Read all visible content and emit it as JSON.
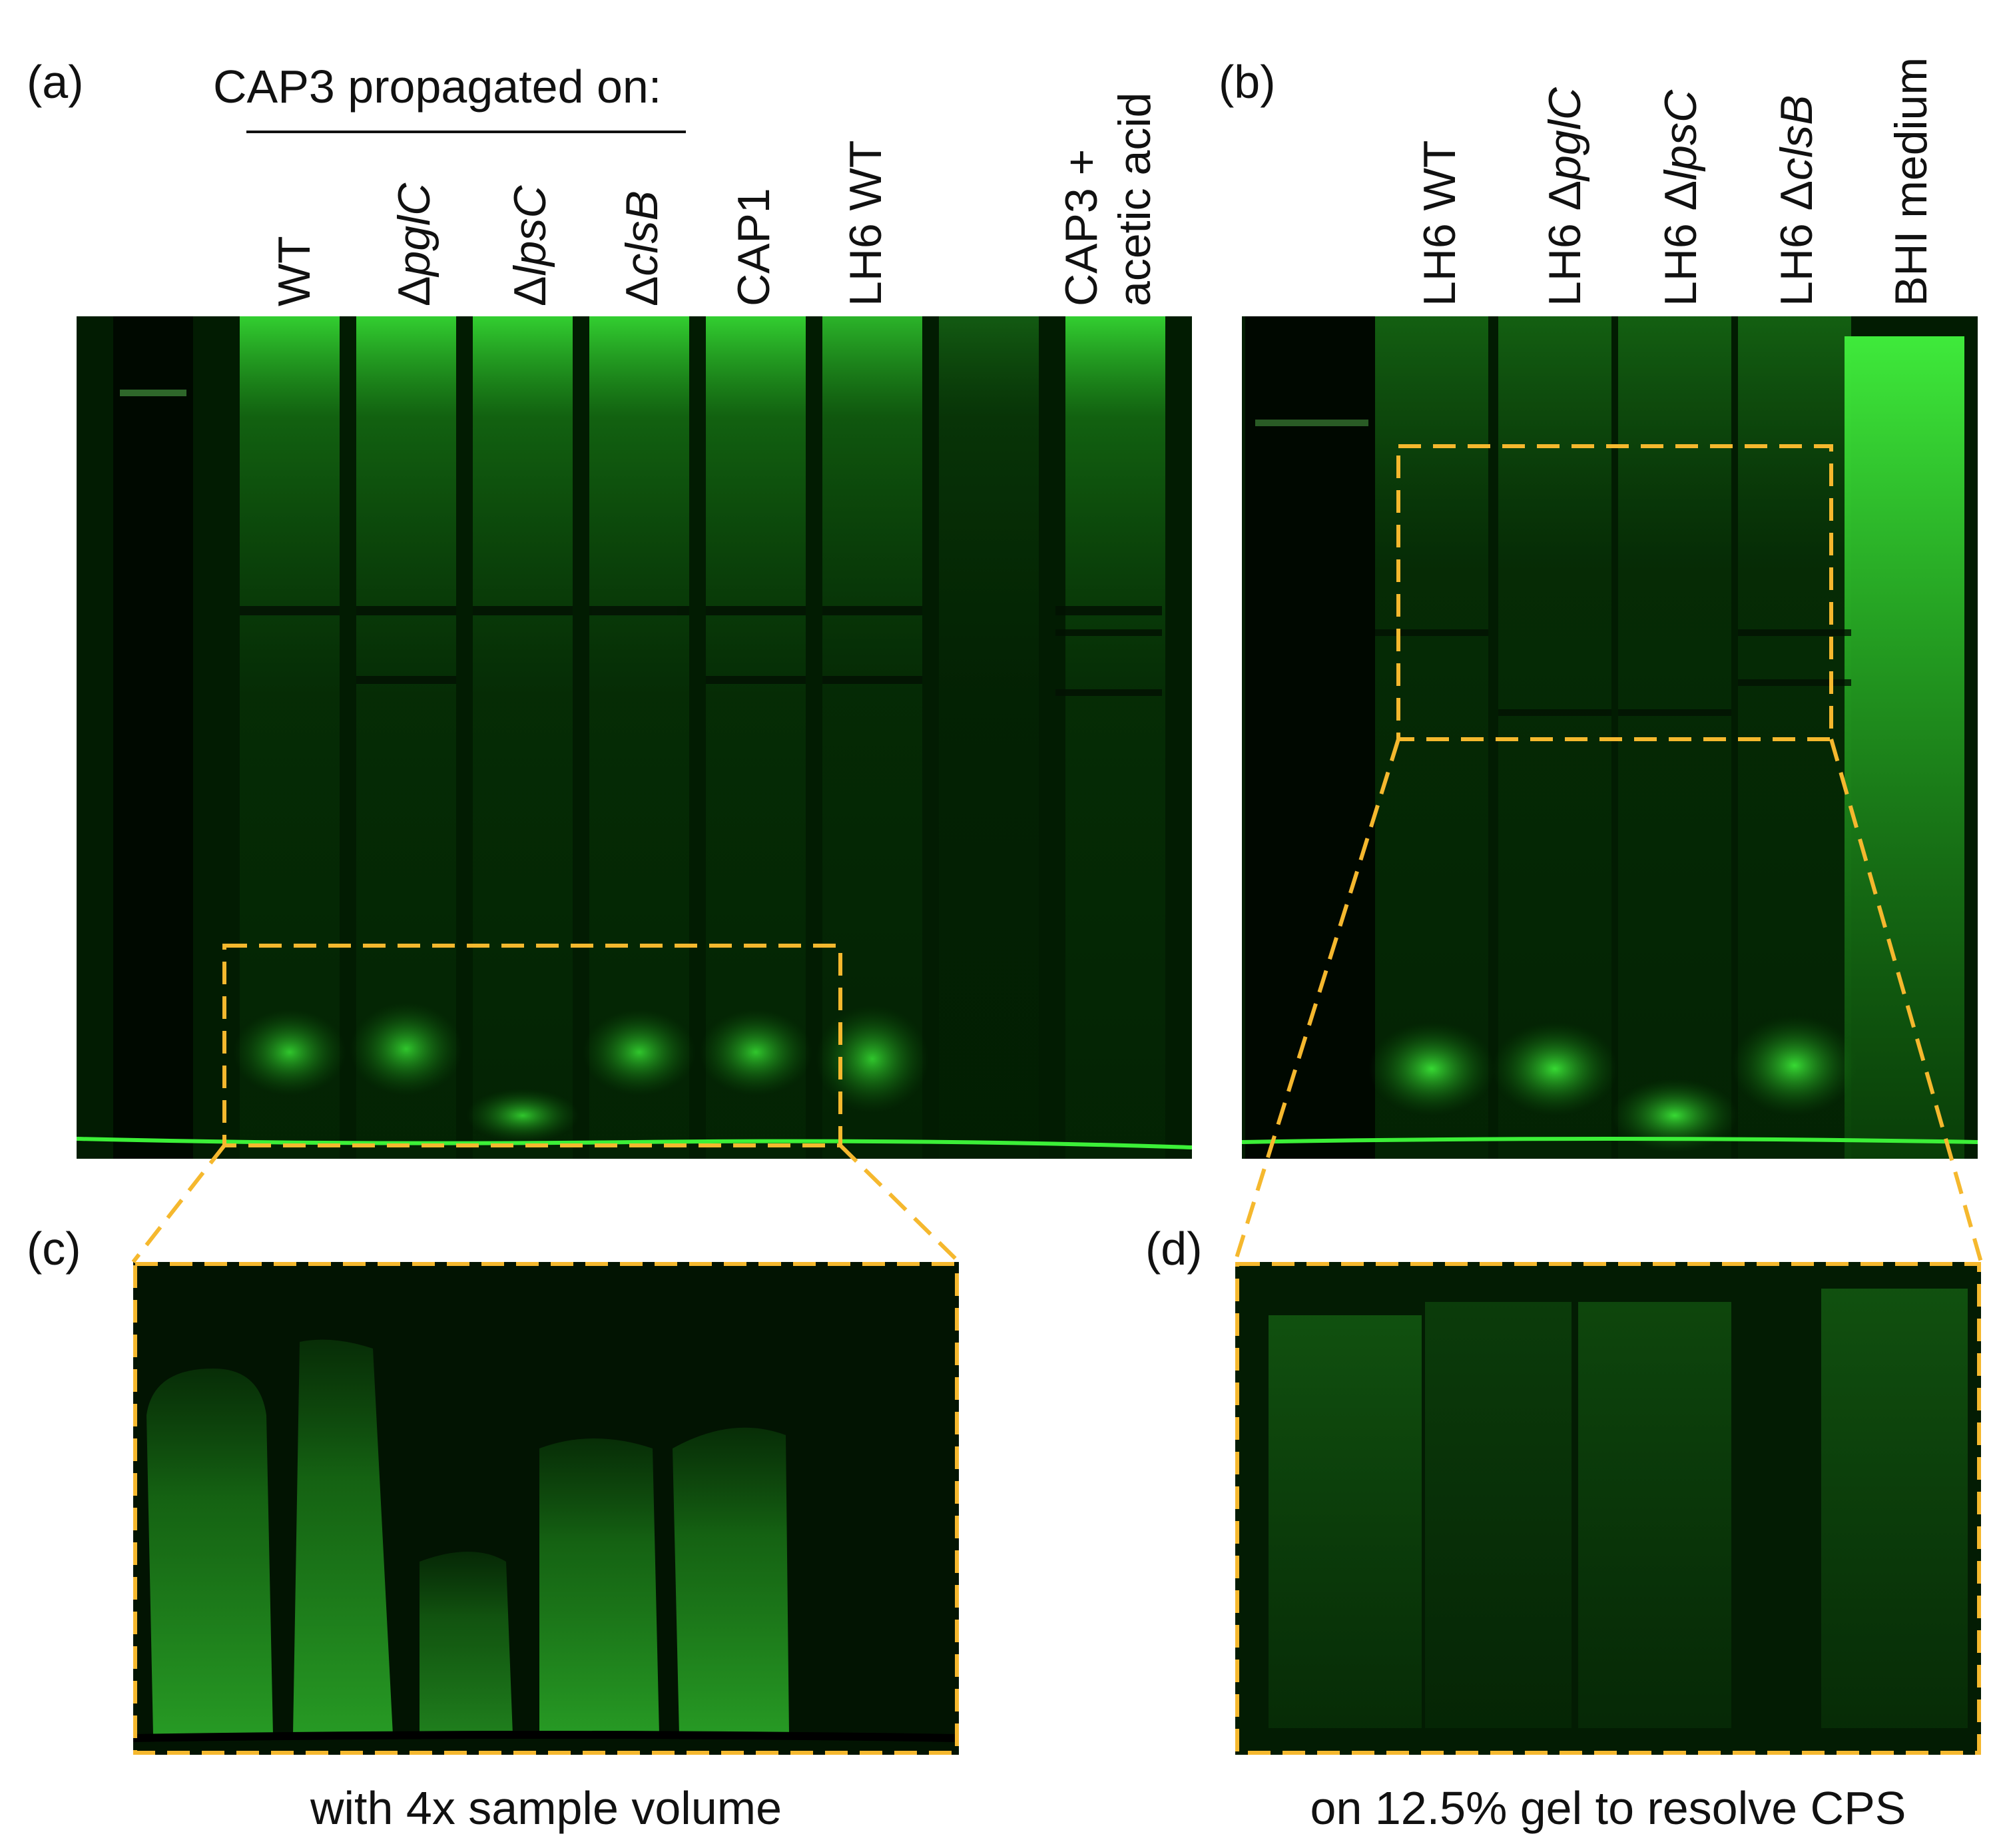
{
  "panels": {
    "a": {
      "letter": "(a)"
    },
    "b": {
      "letter": "(b)"
    },
    "c": {
      "letter": "(c)"
    },
    "d": {
      "letter": "(d)"
    }
  },
  "panel_a": {
    "heading": "CAP3 propagated on:",
    "lanes": [
      {
        "prefix": "",
        "italic": "",
        "text": "WT"
      },
      {
        "prefix": "Δ",
        "italic": "pglC",
        "text": ""
      },
      {
        "prefix": "Δ",
        "italic": "lpsC",
        "text": ""
      },
      {
        "prefix": "Δ",
        "italic": "clsB",
        "text": ""
      },
      {
        "prefix": "",
        "italic": "",
        "text": "CAP1"
      },
      {
        "prefix": "",
        "italic": "",
        "text": "LH6 WT"
      }
    ],
    "last_lane_line1": "CAP3 +",
    "last_lane_line2": "acetic acid"
  },
  "panel_b": {
    "lanes": [
      {
        "prefix": "LH6 ",
        "italic": "",
        "text": "WT"
      },
      {
        "prefix": "LH6 Δ",
        "italic": "pglC",
        "text": ""
      },
      {
        "prefix": "LH6 Δ",
        "italic": "lpsC",
        "text": ""
      },
      {
        "prefix": "LH6 Δ",
        "italic": "clsB",
        "text": ""
      },
      {
        "prefix": "",
        "italic": "",
        "text": "BHI medium"
      }
    ]
  },
  "panel_c": {
    "caption": "with 4x sample volume"
  },
  "panel_d": {
    "caption": "on 12.5% gel to resolve CPS"
  },
  "colors": {
    "gel_bg": "#001800",
    "band": "#22c41f",
    "bright": "#3ef03a",
    "dashed_box": "#f5b82e"
  }
}
